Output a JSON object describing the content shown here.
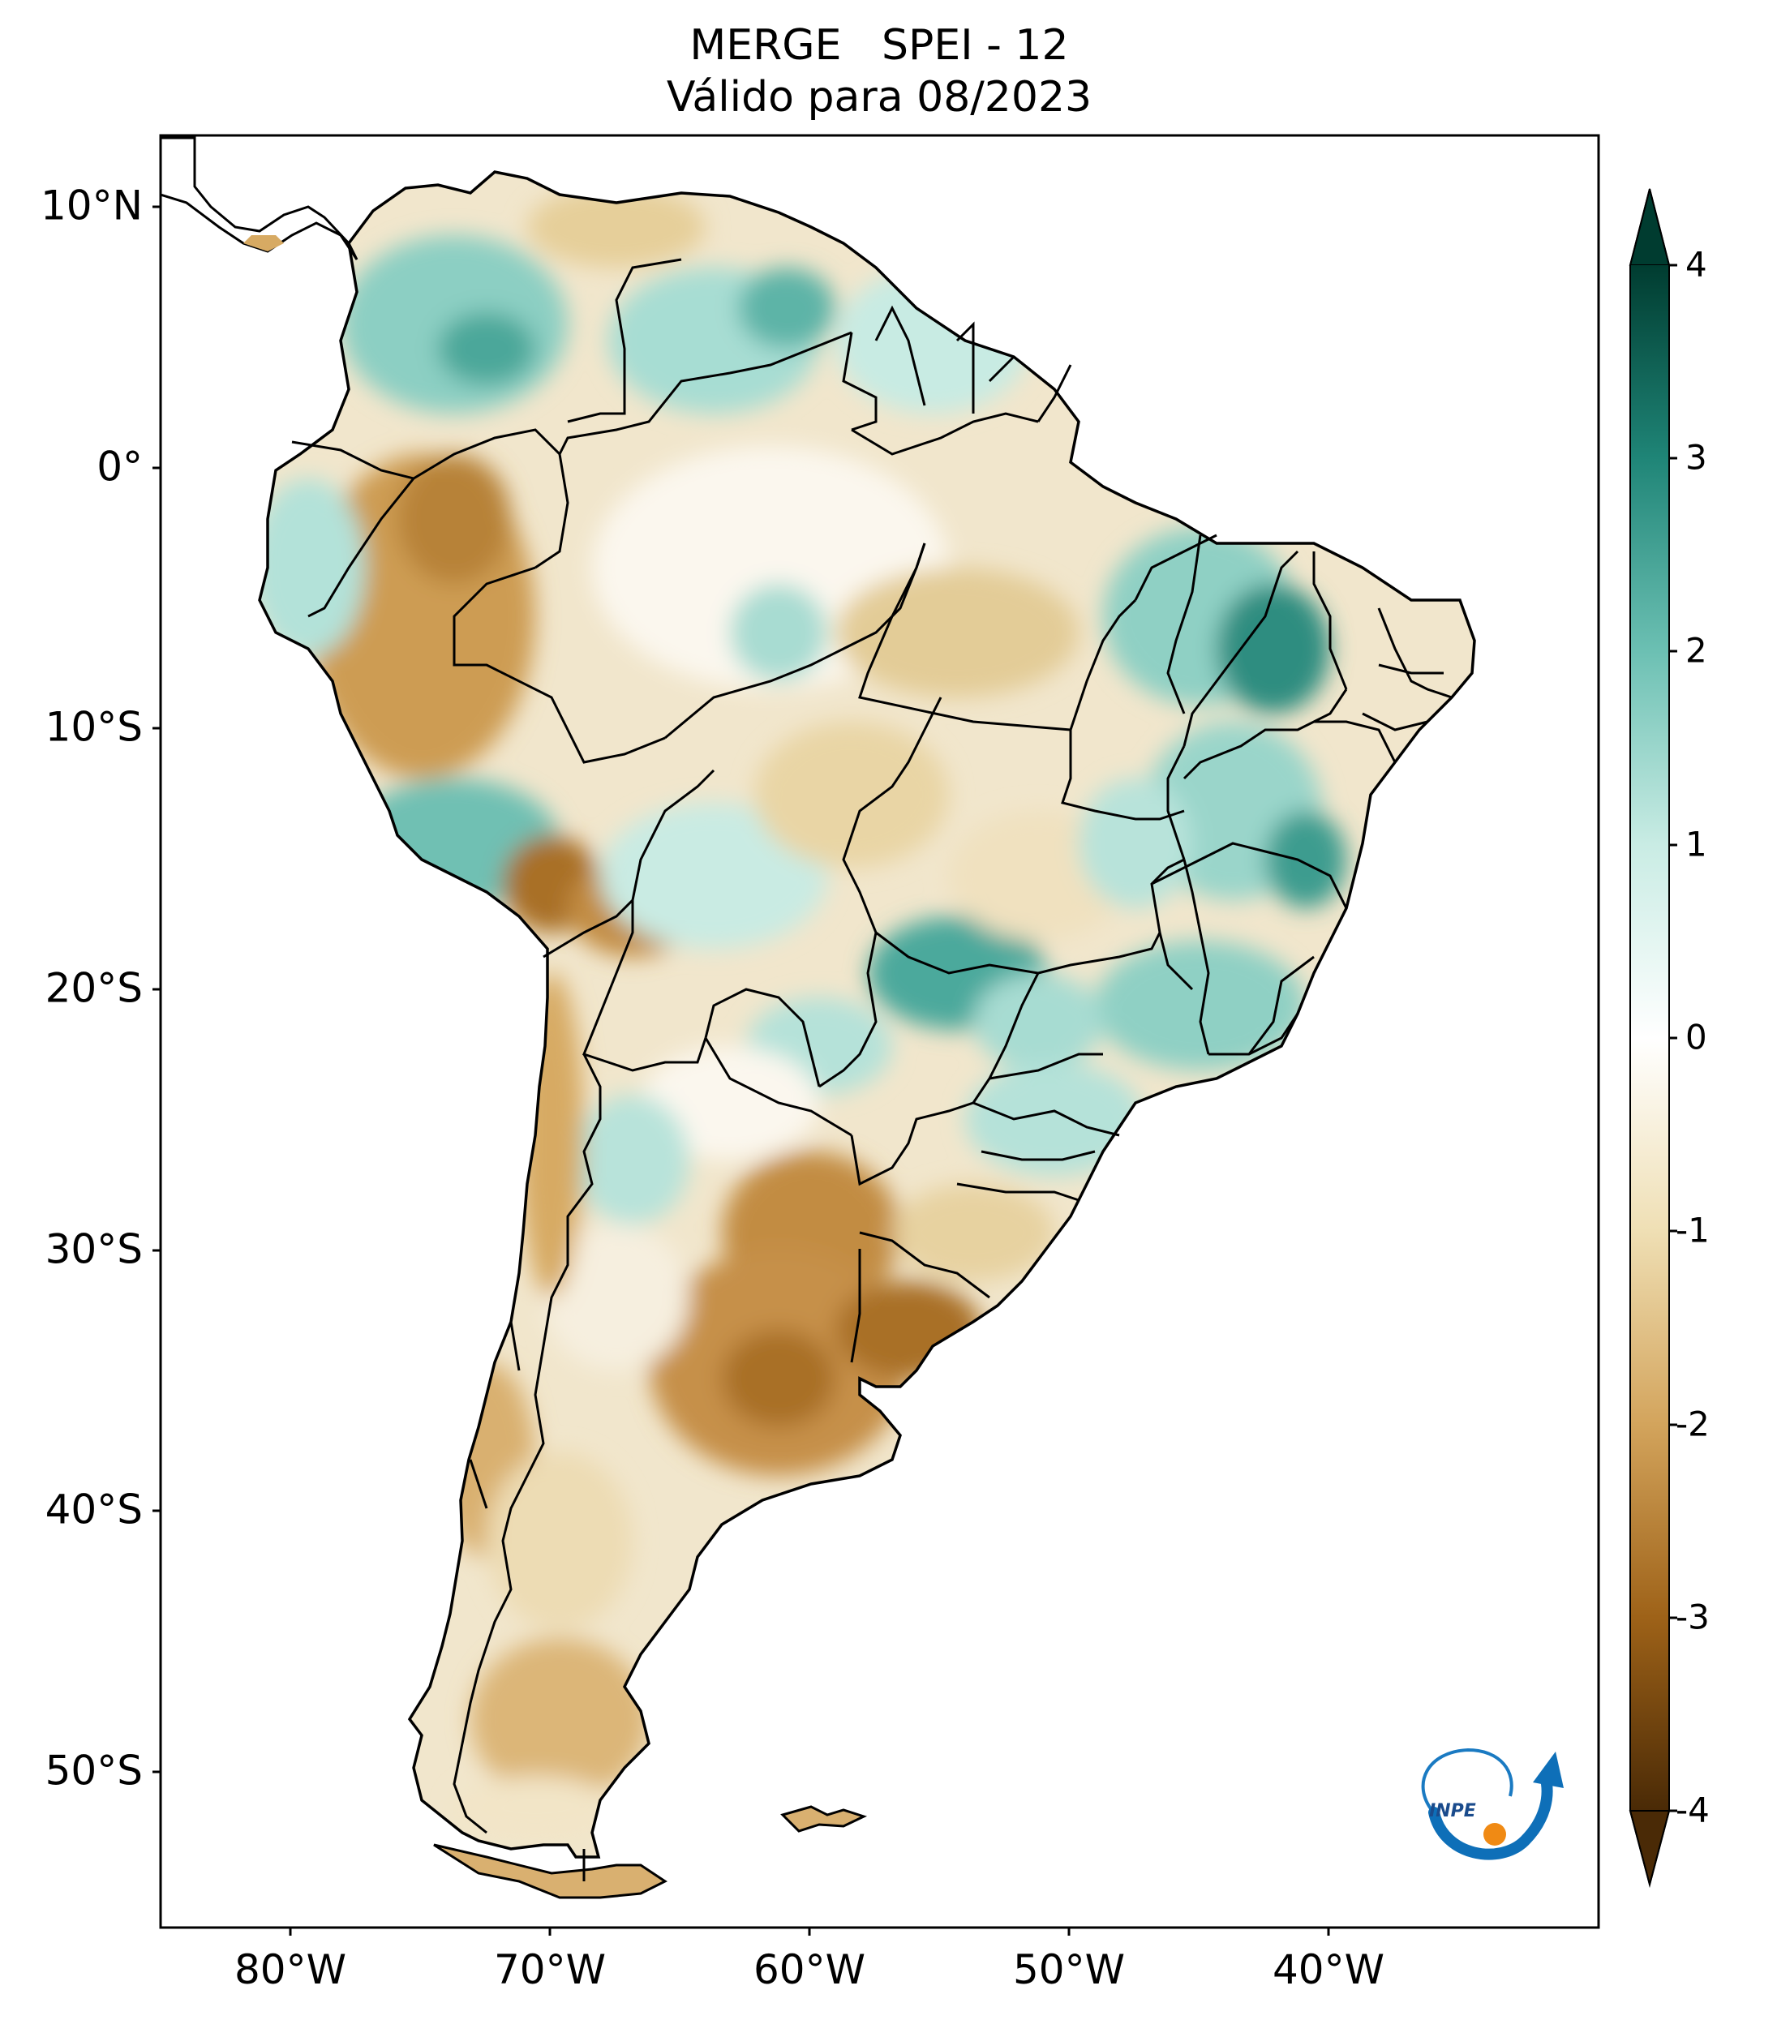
{
  "title_line1": "MERGE   SPEI - 12",
  "title_line2": "Válido para 08/2023",
  "lat_ticks": [
    "10°N",
    "0°",
    "10°S",
    "20°S",
    "30°S",
    "40°S",
    "50°S"
  ],
  "lon_ticks": [
    "80°W",
    "70°W",
    "60°W",
    "50°W",
    "40°W"
  ],
  "colorbar": {
    "labels": [
      "4",
      "3",
      "2",
      "1",
      "0",
      "-1",
      "-2",
      "-3",
      "-4"
    ],
    "min": -4,
    "max": 4,
    "colors": [
      "#4a2a06",
      "#9e6218",
      "#d3a45c",
      "#efdfb4",
      "#ffffff",
      "#c9ece4",
      "#6cc0b3",
      "#1f8577",
      "#003c30"
    ]
  },
  "logo_text": "INPE"
}
